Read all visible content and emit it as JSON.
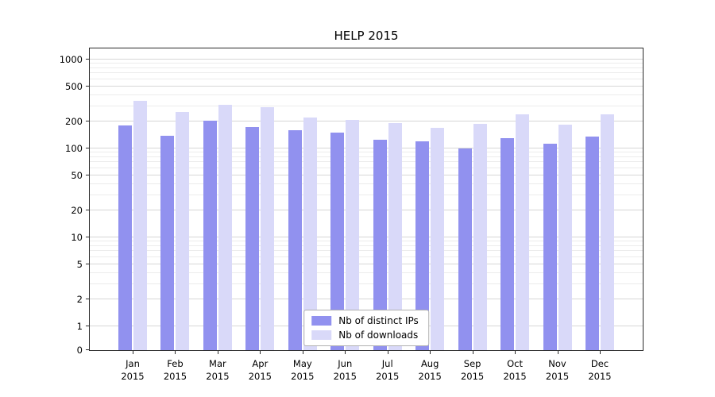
{
  "chart_data": {
    "type": "bar",
    "title": "HELP 2015",
    "categories": [
      "Jan",
      "Feb",
      "Mar",
      "Apr",
      "May",
      "Jun",
      "Jul",
      "Aug",
      "Sep",
      "Oct",
      "Nov",
      "Dec"
    ],
    "year_label": "2015",
    "yticks": [
      0,
      1,
      2,
      5,
      10,
      20,
      50,
      100,
      200,
      500,
      1000
    ],
    "ylim": [
      0,
      1400
    ],
    "yscale": "symlog",
    "grid": true,
    "legend_position": "lower center",
    "series": [
      {
        "name": "Nb of distinct IPs",
        "color": "#9191ef",
        "values": [
          180,
          140,
          205,
          175,
          160,
          150,
          125,
          120,
          100,
          130,
          113,
          135
        ]
      },
      {
        "name": "Nb of downloads",
        "color": "#d9d9f9",
        "values": [
          340,
          255,
          310,
          290,
          225,
          210,
          195,
          170,
          190,
          240,
          185,
          240
        ]
      }
    ]
  }
}
